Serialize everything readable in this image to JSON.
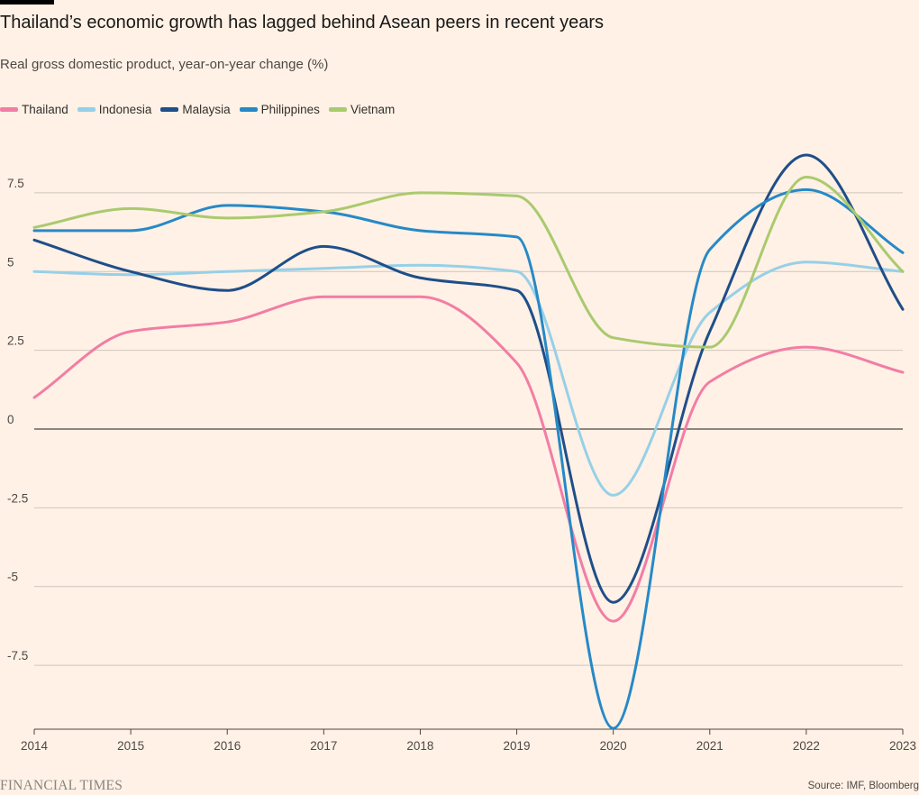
{
  "header": {
    "title": "Thailand’s economic growth has lagged behind Asean peers in recent years",
    "subtitle": "Real gross domestic product, year-on-year change (%)"
  },
  "footer": {
    "logo_text": "FINANCIAL TIMES",
    "source": "Source: IMF, Bloomberg"
  },
  "chart_data": {
    "type": "line",
    "title": "Thailand’s economic growth has lagged behind Asean peers in recent years",
    "subtitle": "Real gross domestic product, year-on-year change (%)",
    "xlabel": "",
    "ylabel": "",
    "x": [
      2014,
      2015,
      2016,
      2017,
      2018,
      2019,
      2020,
      2021,
      2022,
      2023
    ],
    "x_tick_labels": [
      "2014",
      "2015",
      "2016",
      "2017",
      "2018",
      "2019",
      "2020",
      "2021",
      "2022",
      "2023"
    ],
    "y_ticks": [
      7.5,
      5,
      2.5,
      0,
      -2.5,
      -5,
      -7.5
    ],
    "y_tick_labels": [
      "7.5",
      "5",
      "2.5",
      "0",
      "-2.5",
      "-5",
      "-7.5"
    ],
    "xlim": [
      2014,
      2023
    ],
    "ylim": [
      -9.5,
      8.9
    ],
    "grid": true,
    "legend_position": "top-left",
    "series": [
      {
        "name": "Thailand",
        "color": "#F27DA5",
        "values": [
          1.0,
          3.1,
          3.4,
          4.2,
          4.2,
          2.1,
          -6.1,
          1.5,
          2.6,
          1.8
        ]
      },
      {
        "name": "Indonesia",
        "color": "#96D0E8",
        "values": [
          5.0,
          4.9,
          5.0,
          5.1,
          5.2,
          5.0,
          -2.1,
          3.7,
          5.3,
          5.0
        ]
      },
      {
        "name": "Malaysia",
        "color": "#1F4E89",
        "values": [
          6.0,
          5.0,
          4.4,
          5.8,
          4.8,
          4.4,
          -5.5,
          3.1,
          8.7,
          3.8
        ]
      },
      {
        "name": "Philippines",
        "color": "#2689C7",
        "values": [
          6.3,
          6.3,
          7.1,
          6.9,
          6.3,
          6.1,
          -9.5,
          5.7,
          7.6,
          5.6
        ]
      },
      {
        "name": "Vietnam",
        "color": "#A9CA6E",
        "values": [
          6.4,
          7.0,
          6.7,
          6.9,
          7.5,
          7.4,
          2.9,
          2.6,
          8.0,
          5.0
        ]
      }
    ]
  }
}
